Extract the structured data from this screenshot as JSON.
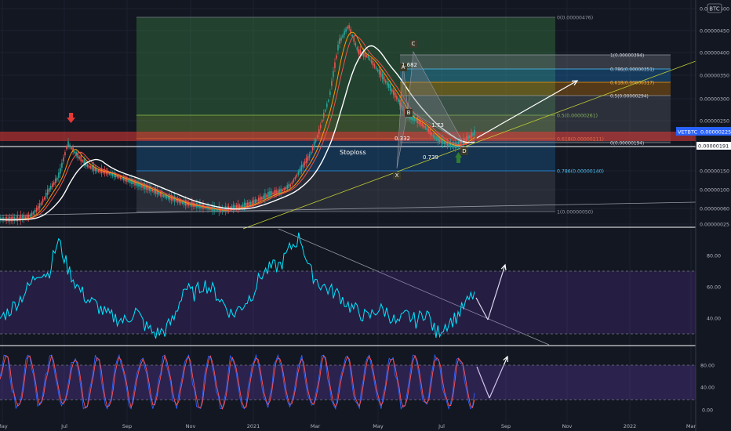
{
  "colors": {
    "background": "#131722",
    "grid": "#1e2230",
    "axis_text": "#b2b5be",
    "candle_up": "#26a69a",
    "candle_down": "#ef5350",
    "ema_fast": "#ff9800",
    "ema_mid": "#ef5350",
    "ma_slow": "#ffffff",
    "resistance": "#e53935",
    "rsi_line": "#00e5ff",
    "stoch_k": "#2962ff",
    "stoch_d": "#ff5252",
    "osc_band": "#2a1a3e",
    "arrow_up": "#2e7d32",
    "arrow_down": "#e53935",
    "fib_green": "#1b5e20",
    "fib_blue": "#1a3a5c",
    "price_tag": "#2962ff"
  },
  "header": {
    "currency_badge": "BTC"
  },
  "price_axis": {
    "ticks": [
      "0.00000500",
      "0.00000450",
      "0.00000400",
      "0.00000350",
      "0.00000300",
      "0.00000250",
      "0.00000200",
      "0.00000150",
      "0.00000100",
      "0.00000060",
      "0.00000025"
    ],
    "current_label": "VETBTC",
    "current_value": "0.00000225",
    "support_value": "0.00000191"
  },
  "time_axis": {
    "ticks": [
      "May",
      "Jul",
      "Sep",
      "Nov",
      "2021",
      "Mar",
      "May",
      "Jul",
      "Sep",
      "Nov",
      "2022",
      "Mar"
    ]
  },
  "rsi_axis": {
    "ticks": [
      "80.00",
      "60.00",
      "40.00"
    ]
  },
  "stoch_axis": {
    "ticks": [
      "80.00",
      "40.00",
      "0.00"
    ]
  },
  "fib_large": {
    "levels": [
      {
        "label": "0(0.00000476)"
      },
      {
        "label": "0.5(0.00000261)"
      },
      {
        "label": "0.618(0.00000211)"
      },
      {
        "label": "0.786(0.00000140)"
      },
      {
        "label": "1(0.00000050)"
      }
    ]
  },
  "fib_small": {
    "levels": [
      {
        "label": "1(0.00000394)"
      },
      {
        "label": "0.786(0.00000351)"
      },
      {
        "label": "0.618(0.00000317)"
      },
      {
        "label": "0.5(0.00000294)"
      },
      {
        "label": "0(0.00000194)"
      }
    ]
  },
  "pattern": {
    "points": [
      "X",
      "A",
      "B",
      "C",
      "D"
    ],
    "ratios": [
      "1.682",
      "0.332",
      "1.73",
      "0.739"
    ]
  },
  "annotations": {
    "stoploss": "Stoploss"
  },
  "chart_data": {
    "type": "candlestick",
    "symbol": "VETBTC",
    "price_series_close": [
      3.5e-07,
      3.4e-07,
      3.6e-07,
      4e-07,
      6e-07,
      9.5e-07,
      1.3e-06,
      2.05e-06,
      1.8e-06,
      1.6e-06,
      1.5e-06,
      1.45e-06,
      1.35e-06,
      1.25e-06,
      1.15e-06,
      1.05e-06,
      9.5e-07,
      8.5e-07,
      7.8e-07,
      7e-07,
      6.6e-07,
      6.2e-07,
      5.8e-07,
      5.5e-07,
      6e-07,
      6.3e-07,
      7e-07,
      8e-07,
      9e-07,
      9.5e-07,
      1.1e-06,
      1.5e-06,
      1.8e-06,
      2.3e-06,
      3e-06,
      4.2e-06,
      4.6e-06,
      4e-06,
      3.9e-06,
      3.6e-06,
      3.3e-06,
      3e-06,
      2.6e-06,
      2.5e-06,
      2.35e-06,
      2.15e-06,
      2.05e-06,
      2e-06,
      2.1e-06,
      2.25e-06
    ],
    "resistance_zone": [
      2.05e-06,
      2.2e-06
    ],
    "support_line": 1.91e-06,
    "rsi": [
      40,
      45,
      52,
      60,
      70,
      68,
      90,
      72,
      60,
      52,
      48,
      42,
      40,
      38,
      45,
      35,
      30,
      32,
      40,
      60,
      55,
      62,
      58,
      50,
      42,
      48,
      55,
      68,
      72,
      74,
      85,
      92,
      70,
      62,
      58,
      55,
      48,
      44,
      40,
      46,
      44,
      36,
      42,
      38,
      45,
      30,
      36,
      40,
      48,
      56
    ],
    "rsi_levels": [
      70,
      30
    ],
    "stoch_levels": [
      80,
      20
    ]
  }
}
